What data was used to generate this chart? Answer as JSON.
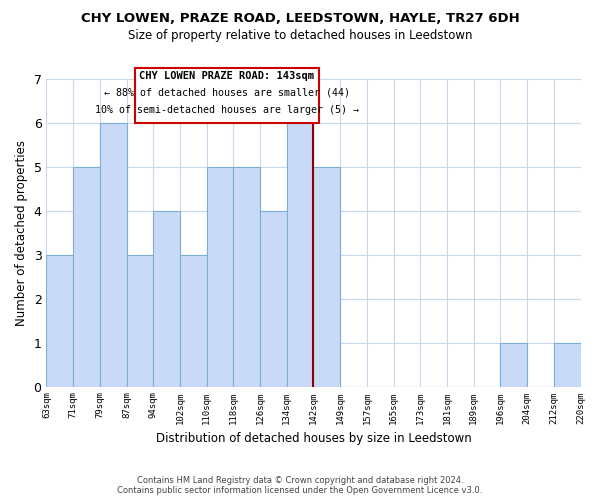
{
  "title": "CHY LOWEN, PRAZE ROAD, LEEDSTOWN, HAYLE, TR27 6DH",
  "subtitle": "Size of property relative to detached houses in Leedstown",
  "xlabel": "Distribution of detached houses by size in Leedstown",
  "ylabel": "Number of detached properties",
  "bin_labels": [
    "63sqm",
    "71sqm",
    "79sqm",
    "87sqm",
    "94sqm",
    "102sqm",
    "110sqm",
    "118sqm",
    "126sqm",
    "134sqm",
    "142sqm",
    "149sqm",
    "157sqm",
    "165sqm",
    "173sqm",
    "181sqm",
    "189sqm",
    "196sqm",
    "204sqm",
    "212sqm",
    "220sqm"
  ],
  "bin_counts": [
    3,
    5,
    6,
    3,
    4,
    3,
    5,
    5,
    4,
    6,
    5,
    0,
    0,
    0,
    0,
    0,
    0,
    1,
    0,
    1
  ],
  "bar_color": "#c9daf8",
  "bar_edge_color": "#7bafd4",
  "annotation_title": "CHY LOWEN PRAZE ROAD: 143sqm",
  "annotation_line1": "← 88% of detached houses are smaller (44)",
  "annotation_line2": "10% of semi-detached houses are larger (5) →",
  "annotation_box_color": "#ffffff",
  "annotation_box_edge_color": "#cc0000",
  "property_line_color": "#8b0000",
  "property_line_x": 10,
  "ylim": [
    0,
    7
  ],
  "yticks": [
    0,
    1,
    2,
    3,
    4,
    5,
    6,
    7
  ],
  "footer_line1": "Contains HM Land Registry data © Crown copyright and database right 2024.",
  "footer_line2": "Contains public sector information licensed under the Open Government Licence v3.0.",
  "bg_color": "#ffffff",
  "grid_color": "#c8d8ec"
}
